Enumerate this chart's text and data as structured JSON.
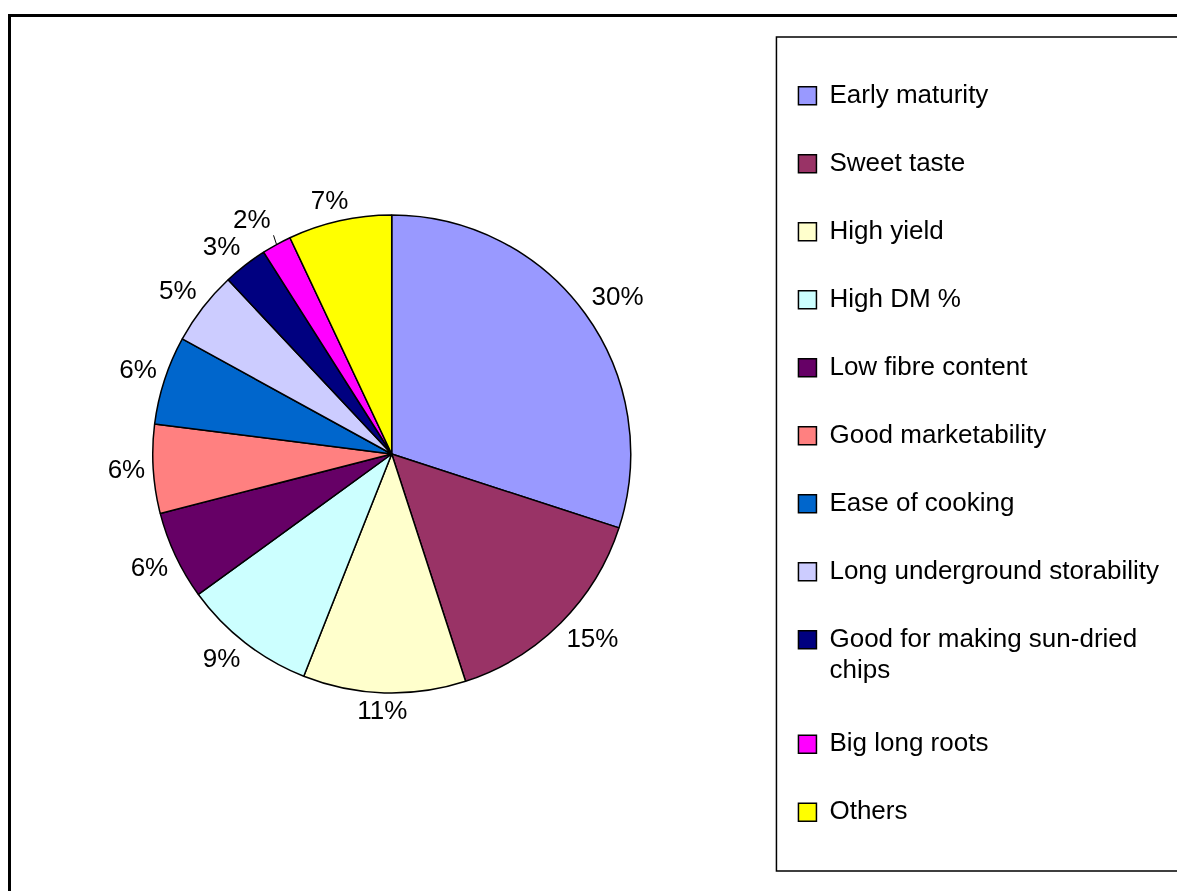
{
  "chart_data": {
    "type": "pie",
    "categories": [
      "Early maturity",
      "Sweet taste",
      "High yield",
      "High DM %",
      "Low fibre content",
      "Good marketability",
      "Ease of cooking",
      "Long underground storability",
      "Good for making sun-dried chips",
      "Big long roots",
      "Others"
    ],
    "values": [
      30,
      15,
      11,
      9,
      6,
      6,
      6,
      5,
      3,
      2,
      7
    ],
    "value_labels": [
      "30%",
      "15%",
      "11%",
      "9%",
      "6%",
      "6%",
      "6%",
      "5%",
      "3%",
      "2%",
      "7%"
    ],
    "colors": [
      "#9999ff",
      "#993366",
      "#ffffcc",
      "#ccffff",
      "#660066",
      "#ff8080",
      "#0066cc",
      "#ccccff",
      "#000080",
      "#ff00ff",
      "#ffff00"
    ],
    "legend": "right"
  }
}
